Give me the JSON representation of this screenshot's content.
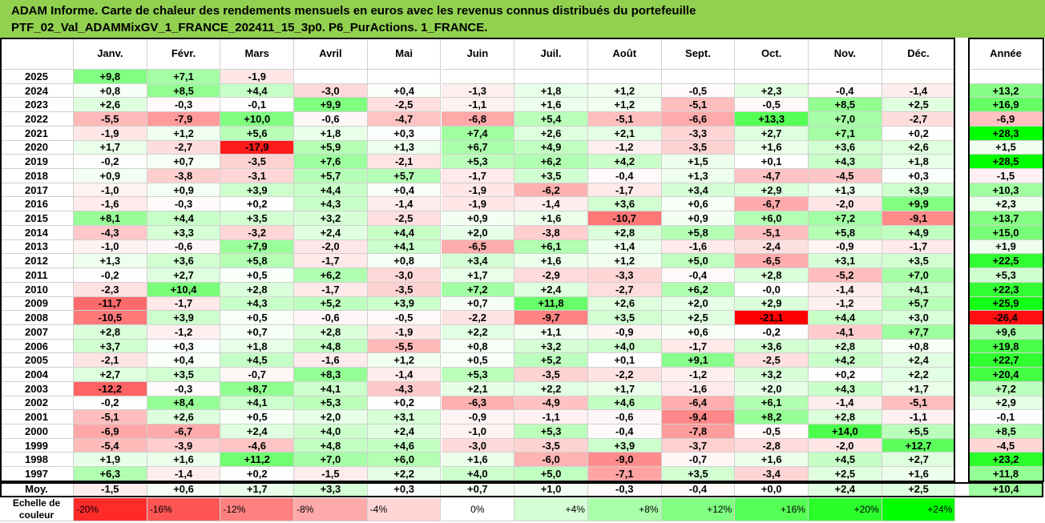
{
  "title": {
    "line1": "ADAM Informe. Carte de chaleur des rendements mensuels en euros avec les revenus connus distribués du portefeuille",
    "line2": "PTF_02_Val_ADAMMixGV_1_FRANCE_202411_15_3p0. P6_PurActions. 1_FRANCE."
  },
  "chart_data": {
    "type": "heatmap",
    "columns": [
      "Janv.",
      "Févr.",
      "Mars",
      "Avril",
      "Mai",
      "Juin",
      "Juil.",
      "Août",
      "Sept.",
      "Oct.",
      "Nov.",
      "Déc."
    ],
    "year_header": "Année",
    "rows": [
      {
        "year": "2025",
        "values": [
          "+9,8",
          "+7,1",
          "-1,9",
          null,
          null,
          null,
          null,
          null,
          null,
          null,
          null,
          null
        ],
        "annual": null
      },
      {
        "year": "2024",
        "values": [
          "+0,8",
          "+8,5",
          "+4,4",
          "-3,0",
          "+0,4",
          "-1,3",
          "+1,8",
          "+1,2",
          "-0,5",
          "+2,3",
          "-0,4",
          "-1,4"
        ],
        "annual": "+13,2"
      },
      {
        "year": "2023",
        "values": [
          "+2,6",
          "-0,3",
          "-0,1",
          "+9,9",
          "-2,5",
          "-1,1",
          "+1,6",
          "+1,2",
          "-5,1",
          "-0,5",
          "+8,5",
          "+2,5"
        ],
        "annual": "+16,9"
      },
      {
        "year": "2022",
        "values": [
          "-5,5",
          "-7,9",
          "+10,0",
          "-0,6",
          "-4,7",
          "-6,8",
          "+5,4",
          "-5,1",
          "-6,6",
          "+13,3",
          "+7,0",
          "-2,7"
        ],
        "annual": "-6,9"
      },
      {
        "year": "2021",
        "values": [
          "-1,9",
          "+1,2",
          "+5,6",
          "+1,8",
          "+0,3",
          "+7,4",
          "+2,6",
          "+2,1",
          "-3,3",
          "+2,7",
          "+7,1",
          "+0,2"
        ],
        "annual": "+28,3"
      },
      {
        "year": "2020",
        "values": [
          "+1,7",
          "-2,7",
          "-17,9",
          "+5,9",
          "+1,3",
          "+6,7",
          "+4,9",
          "-1,2",
          "-3,5",
          "+1,6",
          "+3,6",
          "+2,6"
        ],
        "annual": "+1,5"
      },
      {
        "year": "2019",
        "values": [
          "-0,2",
          "+0,7",
          "-3,5",
          "+7,6",
          "-2,1",
          "+5,3",
          "+6,2",
          "+4,2",
          "+1,5",
          "+0,1",
          "+4,3",
          "+1,8"
        ],
        "annual": "+28,5"
      },
      {
        "year": "2018",
        "values": [
          "+0,9",
          "-3,8",
          "-3,1",
          "+5,7",
          "+5,7",
          "-1,7",
          "+3,5",
          "-0,4",
          "+1,3",
          "-4,7",
          "-4,5",
          "+0,3"
        ],
        "annual": "-1,5"
      },
      {
        "year": "2017",
        "values": [
          "-1,0",
          "+0,9",
          "+3,9",
          "+4,4",
          "+0,4",
          "-1,9",
          "-6,2",
          "-1,7",
          "+3,4",
          "+2,9",
          "+1,3",
          "+3,9"
        ],
        "annual": "+10,3"
      },
      {
        "year": "2016",
        "values": [
          "-1,6",
          "-0,3",
          "+0,2",
          "+4,3",
          "-1,4",
          "-1,9",
          "-1,4",
          "+3,6",
          "+0,6",
          "-6,7",
          "-2,0",
          "+9,9"
        ],
        "annual": "+2,3"
      },
      {
        "year": "2015",
        "values": [
          "+8,1",
          "+4,4",
          "+3,5",
          "+3,2",
          "-2,5",
          "+0,9",
          "+1,6",
          "-10,7",
          "+0,9",
          "+6,0",
          "+7,2",
          "-9,1"
        ],
        "annual": "+13,7"
      },
      {
        "year": "2014",
        "values": [
          "-4,3",
          "+3,3",
          "-3,2",
          "+2,4",
          "+4,4",
          "+2,0",
          "-3,8",
          "+2,8",
          "+5,8",
          "-5,1",
          "+5,8",
          "+4,9"
        ],
        "annual": "+15,0"
      },
      {
        "year": "2013",
        "values": [
          "-1,0",
          "-0,6",
          "+7,9",
          "-2,0",
          "+4,1",
          "-6,5",
          "+6,1",
          "+1,4",
          "-1,6",
          "-2,4",
          "-0,9",
          "-1,7"
        ],
        "annual": "+1,9"
      },
      {
        "year": "2012",
        "values": [
          "+1,3",
          "+3,6",
          "+5,8",
          "-1,7",
          "+0,8",
          "+3,4",
          "+1,6",
          "+1,2",
          "+5,0",
          "-6,5",
          "+3,1",
          "+3,5"
        ],
        "annual": "+22,5"
      },
      {
        "year": "2011",
        "values": [
          "-0,2",
          "+2,7",
          "+0,5",
          "+6,2",
          "-3,0",
          "+1,7",
          "-2,9",
          "-3,3",
          "-0,4",
          "+2,8",
          "-5,2",
          "+7,0"
        ],
        "annual": "+5,3"
      },
      {
        "year": "2010",
        "values": [
          "-2,3",
          "+10,4",
          "+2,8",
          "-1,7",
          "-3,5",
          "+7,2",
          "+2,4",
          "-2,7",
          "+6,2",
          "-0,0",
          "-1,4",
          "+4,1"
        ],
        "annual": "+22,3"
      },
      {
        "year": "2009",
        "values": [
          "-11,7",
          "-1,7",
          "+4,3",
          "+5,2",
          "+3,9",
          "+0,7",
          "+11,8",
          "+2,6",
          "+2,0",
          "+2,9",
          "-1,2",
          "+5,7"
        ],
        "annual": "+25,9"
      },
      {
        "year": "2008",
        "values": [
          "-10,5",
          "+3,9",
          "+0,5",
          "-0,6",
          "-0,5",
          "-2,2",
          "-9,7",
          "+3,5",
          "+2,5",
          "-21,1",
          "+4,4",
          "+3,0"
        ],
        "annual": "-26,4"
      },
      {
        "year": "2007",
        "values": [
          "+2,8",
          "-1,2",
          "+0,7",
          "+2,8",
          "-1,9",
          "+2,2",
          "+1,1",
          "-0,9",
          "+0,6",
          "-0,2",
          "-4,1",
          "+7,7"
        ],
        "annual": "+9,6"
      },
      {
        "year": "2006",
        "values": [
          "+3,7",
          "+0,3",
          "+1,8",
          "+4,8",
          "-5,5",
          "+0,8",
          "+3,2",
          "+4,0",
          "-1,7",
          "+3,6",
          "+2,8",
          "+0,8"
        ],
        "annual": "+19,8"
      },
      {
        "year": "2005",
        "values": [
          "-2,1",
          "+0,4",
          "+4,5",
          "-1,6",
          "+1,2",
          "+0,5",
          "+5,2",
          "+0,1",
          "+9,1",
          "-2,5",
          "+4,2",
          "+2,4"
        ],
        "annual": "+22,7"
      },
      {
        "year": "2004",
        "values": [
          "+2,7",
          "+3,5",
          "-0,7",
          "+8,3",
          "-1,4",
          "+5,3",
          "-3,5",
          "-2,2",
          "-1,2",
          "+3,2",
          "+0,2",
          "+2,2"
        ],
        "annual": "+20,4"
      },
      {
        "year": "2003",
        "values": [
          "-12,2",
          "-0,3",
          "+8,7",
          "+4,1",
          "-4,3",
          "+2,1",
          "+2,2",
          "+1,7",
          "-1,6",
          "+2,0",
          "+4,3",
          "+1,7"
        ],
        "annual": "+7,2"
      },
      {
        "year": "2002",
        "values": [
          "-0,2",
          "+8,4",
          "+4,1",
          "+5,3",
          "+0,2",
          "-6,3",
          "-4,9",
          "+4,6",
          "-6,4",
          "+6,1",
          "-1,4",
          "-5,1"
        ],
        "annual": "+2,9"
      },
      {
        "year": "2001",
        "values": [
          "-5,1",
          "+2,6",
          "+0,5",
          "+2,0",
          "+3,1",
          "-0,9",
          "-1,1",
          "-0,6",
          "-9,4",
          "+8,2",
          "+2,8",
          "-1,1"
        ],
        "annual": "-0,1"
      },
      {
        "year": "2000",
        "values": [
          "-6,9",
          "-6,7",
          "+2,4",
          "+4,0",
          "+2,4",
          "-1,0",
          "+5,3",
          "-0,4",
          "-7,8",
          "-0,5",
          "+14,0",
          "+5,5"
        ],
        "annual": "+8,5"
      },
      {
        "year": "1999",
        "values": [
          "-5,4",
          "-3,9",
          "-4,6",
          "+4,8",
          "+4,6",
          "-3,0",
          "-3,5",
          "+3,9",
          "-3,7",
          "-2,8",
          "-2,0",
          "+12,7"
        ],
        "annual": "-4,5"
      },
      {
        "year": "1998",
        "values": [
          "+1,9",
          "+1,6",
          "+11,2",
          "+7,0",
          "+6,0",
          "+1,6",
          "-6,0",
          "-9,0",
          "-0,7",
          "+1,6",
          "+4,5",
          "+2,7"
        ],
        "annual": "+23,2"
      },
      {
        "year": "1997",
        "values": [
          "+6,3",
          "-1,4",
          "+0,2",
          "-1,5",
          "+2,2",
          "+4,0",
          "+5,0",
          "-7,1",
          "+3,5",
          "-3,4",
          "+2,5",
          "+1,6"
        ],
        "annual": "+11,8"
      }
    ],
    "average": {
      "label": "Moy.",
      "values": [
        "-1,5",
        "+0,6",
        "+1,7",
        "+3,3",
        "+0,3",
        "+0,7",
        "+1,0",
        "-0,3",
        "-0,4",
        "+0,0",
        "+2,4",
        "+2,5"
      ],
      "annual": "+10,4"
    },
    "legend": {
      "label_line1": "Echelle de",
      "label_line2": "couleur",
      "steps": [
        "-20%",
        "-16%",
        "-12%",
        "-8%",
        "-4%",
        "0%",
        "+4%",
        "+8%",
        "+12%",
        "+16%",
        "+20%",
        "+24%"
      ]
    }
  },
  "colors": {
    "title_bg": "#92d050",
    "negative_max": "#ff0000",
    "positive_max": "#00ff00",
    "neutral": "#ffffff"
  }
}
